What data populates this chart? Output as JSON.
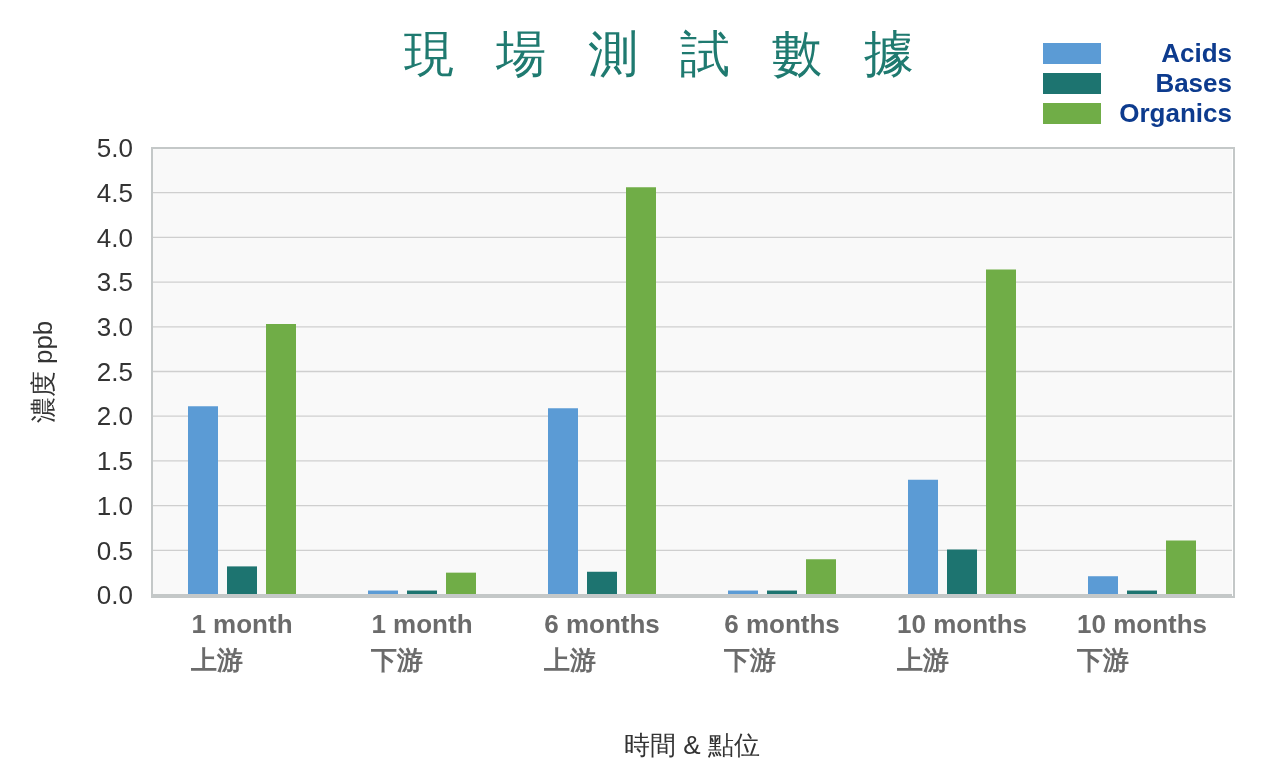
{
  "chart_data": {
    "type": "bar",
    "title": "現場測試數據",
    "xlabel": "時間 & 點位",
    "ylabel": "濃度 ppb",
    "categories": [
      "1 month\n上游",
      "1 month\n下游",
      "6 months\n上游",
      "6 months\n下游",
      "10 months\n上游",
      "10 months\n下游"
    ],
    "series": [
      {
        "name": "Acids",
        "color": "#5b9bd5",
        "values": [
          2.11,
          0.05,
          2.09,
          0.05,
          1.29,
          0.21
        ]
      },
      {
        "name": "Bases",
        "color": "#1d7470",
        "values": [
          0.32,
          0.05,
          0.26,
          0.05,
          0.51,
          0.05
        ]
      },
      {
        "name": "Organics",
        "color": "#70ad47",
        "values": [
          3.03,
          0.25,
          4.56,
          0.4,
          3.64,
          0.61
        ]
      }
    ],
    "ylim": [
      0,
      5
    ],
    "yticks": [
      {
        "value": 0,
        "label": "0.0"
      },
      {
        "value": 0.5,
        "label": "0.5"
      },
      {
        "value": 1,
        "label": "1.0"
      },
      {
        "value": 1.5,
        "label": "1.5"
      },
      {
        "value": 2,
        "label": "2.0"
      },
      {
        "value": 2.5,
        "label": "2.5"
      },
      {
        "value": 3,
        "label": "3.0"
      },
      {
        "value": 3.5,
        "label": "3.5"
      },
      {
        "value": 4,
        "label": "4.0"
      },
      {
        "value": 4.5,
        "label": "4.5"
      },
      {
        "value": 5,
        "label": "5.0"
      }
    ],
    "grid": "y",
    "legend": "top right"
  }
}
